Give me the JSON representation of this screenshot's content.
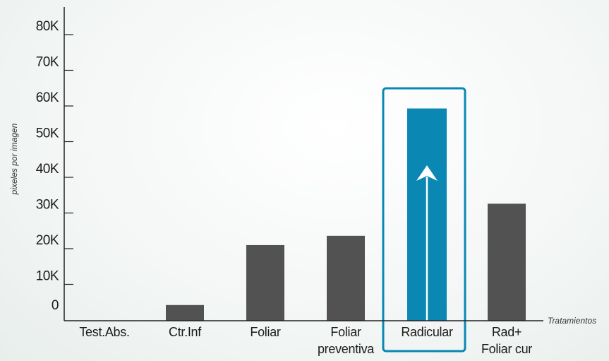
{
  "chart_data": {
    "type": "bar",
    "title": "",
    "xlabel": "Tratamientos",
    "ylabel": "pixeles por imagen",
    "ylim": [
      0,
      80000
    ],
    "yticks": [
      {
        "value": 0,
        "label": "0"
      },
      {
        "value": 10000,
        "label": "10K"
      },
      {
        "value": 20000,
        "label": "20K"
      },
      {
        "value": 30000,
        "label": "30K"
      },
      {
        "value": 40000,
        "label": "40K"
      },
      {
        "value": 50000,
        "label": "50K"
      },
      {
        "value": 60000,
        "label": "60K"
      },
      {
        "value": 70000,
        "label": "70K"
      },
      {
        "value": 80000,
        "label": "80K"
      }
    ],
    "categories": [
      {
        "label": "Test.Abs.",
        "lines": [
          "Test.Abs."
        ]
      },
      {
        "label": "Ctr.Inf",
        "lines": [
          "Ctr.Inf"
        ]
      },
      {
        "label": "Foliar",
        "lines": [
          "Foliar"
        ]
      },
      {
        "label": "Foliar preventiva",
        "lines": [
          "Foliar",
          "preventiva"
        ]
      },
      {
        "label": "Radicular",
        "lines": [
          "Radicular"
        ]
      },
      {
        "label": "Rad+ Foliar cur",
        "lines": [
          "Rad+",
          "Foliar cur"
        ]
      }
    ],
    "values": [
      0,
      4200,
      21000,
      23600,
      59300,
      32600
    ],
    "highlight_index": 4,
    "grid": false,
    "colors": {
      "bar": "#525252",
      "highlight": "#0a87b2",
      "highlight_label": "#0a87b2",
      "text": "#1a1a1a",
      "axis": "#222222",
      "arrow": "#ffffff"
    }
  }
}
